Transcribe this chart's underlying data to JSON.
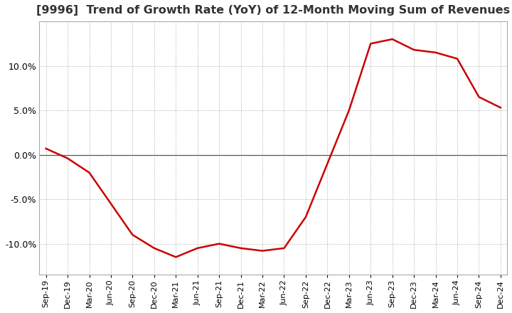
{
  "title": "[9996]  Trend of Growth Rate (YoY) of 12-Month Moving Sum of Revenues",
  "title_fontsize": 11.5,
  "background_color": "#ffffff",
  "plot_bg_color": "#ffffff",
  "grid_color": "#aaaaaa",
  "line_color": "#cc0000",
  "zero_line_color": "#555555",
  "border_color": "#aaaaaa",
  "ylim": [
    -13.5,
    15.0
  ],
  "yticks": [
    -10.0,
    -5.0,
    0.0,
    5.0,
    10.0
  ],
  "x_labels": [
    "Sep-19",
    "Dec-19",
    "Mar-20",
    "Jun-20",
    "Sep-20",
    "Dec-20",
    "Mar-21",
    "Jun-21",
    "Sep-21",
    "Dec-21",
    "Mar-22",
    "Jun-22",
    "Sep-22",
    "Dec-22",
    "Mar-23",
    "Jun-23",
    "Sep-23",
    "Dec-23",
    "Mar-24",
    "Jun-24",
    "Sep-24",
    "Dec-24"
  ],
  "values": [
    0.7,
    -0.4,
    -2.0,
    -5.5,
    -9.0,
    -10.5,
    -11.5,
    -10.5,
    -10.0,
    -10.5,
    -10.8,
    -10.5,
    -7.0,
    -1.0,
    5.0,
    12.5,
    13.0,
    11.8,
    11.5,
    10.8,
    6.5,
    5.3
  ]
}
